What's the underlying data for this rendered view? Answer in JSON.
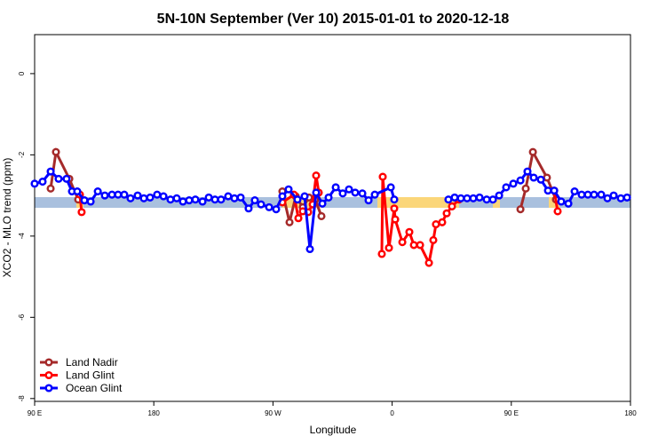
{
  "chart_data": {
    "type": "line",
    "title": "5N-10N September (Ver 10)   2015-01-01 to 2020-12-18",
    "x_label": "Longitude",
    "y_label": "XCO2 - MLO trend (ppm)",
    "xlim": [
      90,
      540
    ],
    "ylim": [
      -8.07,
      0.96
    ],
    "xticks": [
      {
        "value": 90,
        "label": "90 E"
      },
      {
        "value": 180,
        "label": "180"
      },
      {
        "value": 270,
        "label": "90 W"
      },
      {
        "value": 360,
        "label": "0"
      },
      {
        "value": 450,
        "label": "90 E"
      },
      {
        "value": 540,
        "label": "180"
      }
    ],
    "yticks": [
      0,
      -2,
      -4,
      -6,
      -8
    ],
    "legend": "bottom-left",
    "series": [
      {
        "name": "Land Nadir",
        "color": "#a52a2a",
        "x": [
          102.1,
          106.1,
          116.2,
          122.9,
          null,
          277.1,
          282.5,
          287.2,
          292.5,
          297.2,
          301.9,
          306.6,
          null,
          456.9,
          460.9,
          466.3,
          476.9,
          483.7
        ],
        "values": [
          -2.83,
          -1.93,
          -2.59,
          -3.1,
          null,
          -2.9,
          -3.66,
          -3.02,
          -3.29,
          -3.05,
          -3.1,
          -3.51,
          null,
          -3.34,
          -2.83,
          -1.93,
          -2.56,
          -3.1
        ]
      },
      {
        "name": "Land Glint",
        "color": "#ff0000",
        "x": [
          124.2,
          125.5,
          null,
          277.1,
          285.8,
          289.2,
          292.5,
          296.6,
          300.0,
          302.6,
          304.6,
          null,
          352.2,
          352.9,
          357.6,
          361.6,
          362.3,
          367.7,
          373.0,
          376.4,
          381.1,
          387.8,
          391.1,
          393.1,
          397.8,
          401.2,
          405.2,
          410.5,
          null,
          482.4,
          485.0
        ],
        "values": [
          -2.98,
          -3.41,
          null,
          -3.17,
          -2.98,
          -3.56,
          -3.39,
          -3.41,
          -3.22,
          -2.51,
          -2.93,
          null,
          -4.44,
          -2.54,
          -4.29,
          -3.32,
          -3.59,
          -4.15,
          -3.9,
          -4.22,
          -4.22,
          -4.66,
          -4.1,
          -3.71,
          -3.66,
          -3.44,
          -3.27,
          -3.1,
          null,
          -2.88,
          -3.39
        ]
      },
      {
        "name": "Ocean Glint",
        "color": "#0000ff",
        "x": [
          90,
          96.0,
          102.1,
          108.1,
          114.1,
          118.2,
          122.2,
          127.6,
          132.3,
          137.7,
          143.0,
          148.4,
          153.0,
          157.7,
          162.4,
          167.8,
          172.5,
          177.2,
          182.5,
          187.3,
          192.6,
          197.3,
          202.0,
          206.7,
          211.4,
          216.8,
          221.5,
          226.2,
          230.8,
          236.2,
          240.9,
          245.6,
          251.6,
          256.3,
          261.0,
          267.1,
          272.4,
          277.1,
          281.8,
          288.5,
          293.9,
          297.9,
          302.6,
          307.3,
          312.0,
          317.4,
          322.7,
          327.4,
          332.1,
          337.5,
          342.2,
          346.9,
          359.0,
          361.6,
          null,
          402.5,
          407.2,
          411.9,
          416.6,
          421.3,
          426.0,
          431.4,
          436.1,
          440.8,
          446.1,
          451.5,
          456.9,
          462.2,
          466.9,
          472.3,
          477.7,
          482.4,
          487.7,
          493.1,
          497.8,
          503.1,
          507.8,
          512.5,
          517.9,
          522.6,
          527.3,
          532.7,
          537.4
        ],
        "values": [
          -2.71,
          -2.66,
          -2.41,
          -2.59,
          -2.59,
          -2.9,
          -2.9,
          -3.12,
          -3.15,
          -2.9,
          -3.0,
          -2.98,
          -2.98,
          -2.98,
          -3.07,
          -3.0,
          -3.07,
          -3.05,
          -2.98,
          -3.02,
          -3.1,
          -3.07,
          -3.15,
          -3.12,
          -3.1,
          -3.15,
          -3.05,
          -3.1,
          -3.1,
          -3.02,
          -3.07,
          -3.05,
          -3.32,
          -3.12,
          -3.22,
          -3.29,
          -3.34,
          -3.02,
          -2.85,
          -3.1,
          -3.02,
          -4.32,
          -2.93,
          -3.2,
          -3.05,
          -2.8,
          -2.95,
          -2.85,
          -2.93,
          -2.95,
          -3.12,
          -2.98,
          -2.8,
          -3.1,
          null,
          -3.1,
          -3.05,
          -3.07,
          -3.07,
          -3.07,
          -3.05,
          -3.1,
          -3.1,
          -3.0,
          -2.8,
          -2.71,
          -2.63,
          -2.41,
          -2.56,
          -2.61,
          -2.88,
          -2.88,
          -3.15,
          -3.2,
          -2.9,
          -2.98,
          -2.98,
          -2.98,
          -2.98,
          -3.07,
          -3.0,
          -3.07,
          -3.05
        ]
      }
    ]
  }
}
